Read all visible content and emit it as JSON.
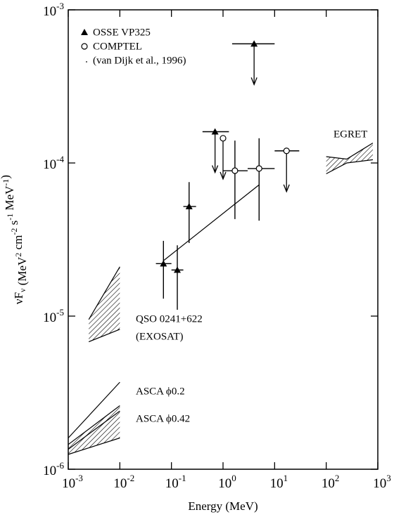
{
  "chart_data": {
    "type": "scatter",
    "x_label": "Energy (MeV)",
    "y_label": [
      {
        "text": "νF"
      },
      {
        "text": "ν",
        "shift": "sub"
      },
      {
        "text": " (MeV"
      },
      {
        "text": "2",
        "shift": "sup"
      },
      {
        "text": " cm"
      },
      {
        "text": "-2",
        "shift": "sup"
      },
      {
        "text": " s"
      },
      {
        "text": "-1",
        "shift": "sup"
      },
      {
        "text": " MeV"
      },
      {
        "text": "-1",
        "shift": "sup"
      },
      {
        "text": ")"
      }
    ],
    "log_x": true,
    "log_y": true,
    "xlim": [
      0.001,
      1000
    ],
    "ylim": [
      1e-06,
      0.001
    ],
    "xticks": [
      {
        "value": 0.001,
        "label": "10",
        "exponent": "-3"
      },
      {
        "value": 0.01,
        "label": "10",
        "exponent": "-2"
      },
      {
        "value": 0.1,
        "label": "10",
        "exponent": "-1"
      },
      {
        "value": 1,
        "label": "10",
        "exponent": "0"
      },
      {
        "value": 10,
        "label": "10",
        "exponent": "1"
      },
      {
        "value": 100,
        "label": "10",
        "exponent": "2"
      },
      {
        "value": 1000,
        "label": "10",
        "exponent": "3"
      }
    ],
    "yticks": [
      {
        "value": 1e-06,
        "label": "10",
        "exponent": "-6"
      },
      {
        "value": 1e-05,
        "label": "10",
        "exponent": "-5"
      },
      {
        "value": 0.0001,
        "label": "10",
        "exponent": "-4"
      },
      {
        "value": 0.001,
        "label": "10",
        "exponent": "-3"
      }
    ],
    "legend": "top-left",
    "series": [
      {
        "name": "OSSE VP325",
        "marker": "triangle",
        "color": "#000000",
        "x": [
          0.07,
          0.13,
          0.22,
          0.7,
          4
        ],
        "values": [
          2.2e-05,
          2e-05,
          5.2e-05,
          0.00016,
          0.0006
        ],
        "x_low": [
          0.05,
          0.1,
          0.17,
          0.4,
          1.5
        ],
        "x_high": [
          0.1,
          0.17,
          0.3,
          1.3,
          10
        ],
        "y_low": [
          1.3e-05,
          1.1e-05,
          3e-05,
          null,
          null
        ],
        "y_high": [
          3.1e-05,
          2.9e-05,
          7.5e-05,
          null,
          null
        ],
        "upper_limit": [
          false,
          false,
          false,
          true,
          true
        ]
      },
      {
        "name": "COMPTEL",
        "marker": "circle",
        "color": "#000000",
        "x": [
          1.0,
          1.7,
          5.0,
          17
        ],
        "values": [
          0.000145,
          8.9e-05,
          9.2e-05,
          0.00012
        ],
        "x_low": [
          null,
          1.0,
          3.0,
          10
        ],
        "x_high": [
          null,
          3.0,
          10,
          30
        ],
        "y_low": [
          null,
          4.3e-05,
          4.2e-05,
          null
        ],
        "y_high": [
          null,
          0.00014,
          0.000145,
          null
        ],
        "upper_limit": [
          true,
          false,
          false,
          true
        ]
      },
      {
        "name": "(van Dijk et al., 1996)",
        "marker": "line",
        "color": "#000000",
        "x": [
          0.07,
          5
        ],
        "values": [
          2.3e-05,
          7.2e-05
        ]
      }
    ],
    "bands": [
      {
        "label": [
          "EGRET"
        ],
        "hatch": true,
        "x": [
          100,
          250,
          800
        ],
        "upper": [
          0.00011,
          0.000106,
          0.000135
        ],
        "lower": [
          8.5e-05,
          0.0001,
          0.000105
        ]
      },
      {
        "label": [
          "QSO 0241+622",
          "(EXOSAT)"
        ],
        "hatch": true,
        "x": [
          0.0025,
          0.01
        ],
        "upper": [
          9.5e-06,
          2.1e-05
        ],
        "lower": [
          6.8e-06,
          8.2e-06
        ]
      },
      {
        "label": [
          "ASCA ϕ0.2"
        ],
        "hatch": false,
        "x": [
          0.001,
          0.01
        ],
        "upper": [
          1.6e-06,
          3.7e-06
        ],
        "lower": [
          1.35e-06,
          2.4e-06
        ]
      },
      {
        "label": [
          "ASCA ϕ0.42"
        ],
        "hatch": true,
        "x": [
          0.001,
          0.01
        ],
        "upper": [
          1.45e-06,
          2.6e-06
        ],
        "lower": [
          1.25e-06,
          1.6e-06
        ]
      }
    ]
  }
}
